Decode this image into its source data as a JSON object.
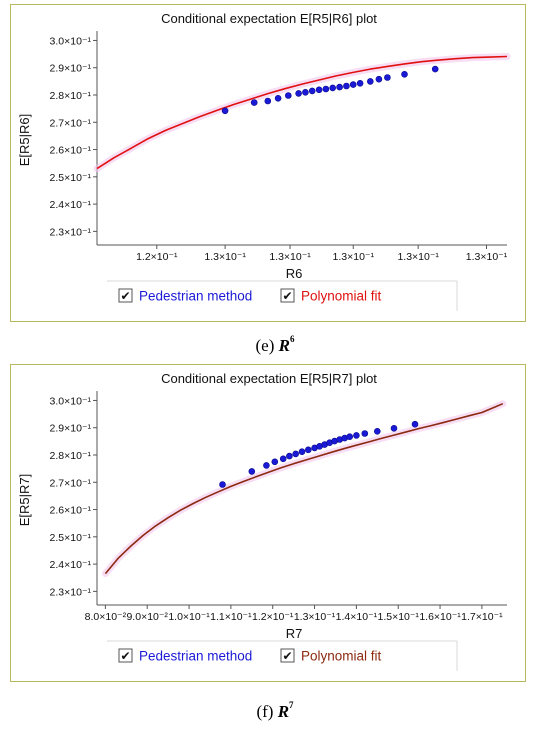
{
  "figures": [
    {
      "caption_label": "(e) ",
      "caption_var": "R",
      "caption_sup": "6",
      "chart": {
        "type": "line",
        "title": "Conditional expectation E[R5|R6] plot",
        "xlabel": "R6",
        "ylabel": "E[R5|R6]",
        "x_tick_labels": [
          "1.2×10⁻¹",
          "1.3×10⁻¹",
          "1.3×10⁻¹",
          "1.3×10⁻¹",
          "1.3×10⁻¹",
          "1.3×10⁻¹"
        ],
        "y_ticks": [
          0.23,
          0.24,
          0.25,
          0.26,
          0.27,
          0.28,
          0.29,
          0.3
        ],
        "y_tick_labels": [
          "2.3×10⁻¹",
          "2.4×10⁻¹",
          "2.5×10⁻¹",
          "2.6×10⁻¹",
          "2.7×10⁻¹",
          "2.8×10⁻¹",
          "2.9×10⁻¹",
          "3.0×10⁻¹"
        ],
        "xlim": [
          0.115,
          0.139
        ],
        "ylim": [
          0.225,
          0.302
        ],
        "x_tick_values": [
          0.1185,
          0.1225,
          0.1263,
          0.13,
          0.1338,
          0.1378
        ],
        "legend": [
          {
            "label": "Pedestrian method",
            "color": "#1a1ad6",
            "checked": true
          },
          {
            "label": "Polynomial fit",
            "color": "#e01010",
            "checked": true
          }
        ],
        "fit_color": "#e01010",
        "point_color": "#1a1ad6",
        "fit": {
          "x": [
            0.115,
            0.116,
            0.117,
            0.118,
            0.119,
            0.12,
            0.121,
            0.122,
            0.123,
            0.124,
            0.125,
            0.126,
            0.127,
            0.128,
            0.129,
            0.13,
            0.131,
            0.132,
            0.133,
            0.134,
            0.135,
            0.136,
            0.137,
            0.138,
            0.139
          ],
          "y": [
            0.253,
            0.257,
            0.2605,
            0.264,
            0.267,
            0.2695,
            0.272,
            0.2743,
            0.2765,
            0.2785,
            0.2805,
            0.2823,
            0.284,
            0.2855,
            0.287,
            0.2883,
            0.2895,
            0.2905,
            0.2914,
            0.2922,
            0.2928,
            0.2933,
            0.2937,
            0.2939,
            0.2941
          ]
        },
        "points": {
          "x": [
            0.1225,
            0.1242,
            0.125,
            0.1256,
            0.1262,
            0.1268,
            0.1272,
            0.1276,
            0.128,
            0.1284,
            0.1288,
            0.1292,
            0.1296,
            0.13,
            0.1304,
            0.131,
            0.1315,
            0.132,
            0.133,
            0.1348
          ],
          "y": [
            0.2742,
            0.2772,
            0.2778,
            0.2788,
            0.2798,
            0.2806,
            0.281,
            0.2815,
            0.2819,
            0.2822,
            0.2826,
            0.2829,
            0.2833,
            0.2838,
            0.2843,
            0.285,
            0.2858,
            0.2864,
            0.2876,
            0.2895
          ]
        }
      }
    },
    {
      "caption_label": "(f) ",
      "caption_var": "R",
      "caption_sup": "7",
      "chart": {
        "type": "line",
        "title": "Conditional expectation E[R5|R7] plot",
        "xlabel": "R7",
        "ylabel": "E[R5|R7]",
        "x_ticks": [
          0.08,
          0.09,
          0.1,
          0.11,
          0.12,
          0.13,
          0.14,
          0.15,
          0.16,
          0.17
        ],
        "x_tick_labels": [
          "8.0×10⁻²",
          "9.0×10⁻²",
          "1.0×10⁻¹",
          "1.1×10⁻¹",
          "1.2×10⁻¹",
          "1.3×10⁻¹",
          "1.4×10⁻¹",
          "1.5×10⁻¹",
          "1.6×10⁻¹",
          "1.7×10⁻¹"
        ],
        "y_ticks": [
          0.23,
          0.24,
          0.25,
          0.26,
          0.27,
          0.28,
          0.29,
          0.3
        ],
        "y_tick_labels": [
          "2.3×10⁻¹",
          "2.4×10⁻¹",
          "2.5×10⁻¹",
          "2.6×10⁻¹",
          "2.7×10⁻¹",
          "2.8×10⁻¹",
          "2.9×10⁻¹",
          "3.0×10⁻¹"
        ],
        "xlim": [
          0.078,
          0.176
        ],
        "ylim": [
          0.225,
          0.302
        ],
        "legend": [
          {
            "label": "Pedestrian method",
            "color": "#1a1ad6",
            "checked": true
          },
          {
            "label": "Polynomial fit",
            "color": "#8b2a10",
            "checked": true
          }
        ],
        "fit_color": "#8b2a10",
        "point_color": "#1a1ad6",
        "fit": {
          "x": [
            0.08,
            0.083,
            0.086,
            0.089,
            0.092,
            0.095,
            0.098,
            0.101,
            0.104,
            0.107,
            0.11,
            0.113,
            0.116,
            0.119,
            0.122,
            0.125,
            0.128,
            0.131,
            0.134,
            0.137,
            0.14,
            0.143,
            0.146,
            0.149,
            0.152,
            0.155,
            0.158,
            0.161,
            0.164,
            0.167,
            0.17,
            0.173,
            0.175
          ],
          "y": [
            0.2365,
            0.242,
            0.2465,
            0.2505,
            0.254,
            0.257,
            0.2598,
            0.2622,
            0.2645,
            0.2665,
            0.2685,
            0.2703,
            0.272,
            0.2737,
            0.2753,
            0.2768,
            0.2782,
            0.2796,
            0.281,
            0.2823,
            0.2836,
            0.2848,
            0.2861,
            0.2873,
            0.2885,
            0.2897,
            0.2908,
            0.292,
            0.2932,
            0.2944,
            0.2956,
            0.2975,
            0.2988
          ]
        },
        "points": {
          "x": [
            0.108,
            0.115,
            0.1185,
            0.1205,
            0.1225,
            0.124,
            0.1255,
            0.127,
            0.1285,
            0.13,
            0.1312,
            0.1324,
            0.1336,
            0.1348,
            0.136,
            0.1372,
            0.1384,
            0.14,
            0.142,
            0.145,
            0.149,
            0.154
          ],
          "y": [
            0.2692,
            0.274,
            0.2762,
            0.2775,
            0.2786,
            0.2796,
            0.2804,
            0.2812,
            0.2819,
            0.2826,
            0.2832,
            0.2838,
            0.2845,
            0.2851,
            0.2857,
            0.2862,
            0.2867,
            0.2872,
            0.2879,
            0.2887,
            0.2898,
            0.2913
          ]
        }
      }
    }
  ]
}
